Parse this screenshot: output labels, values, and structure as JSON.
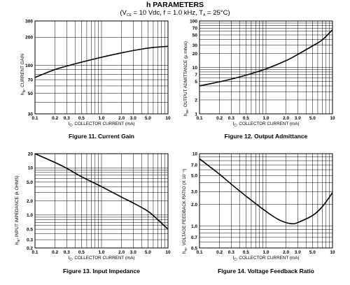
{
  "header": {
    "title": "h PARAMETERS",
    "cond_prefix": "(V",
    "cond_vce_sub": "CE",
    "cond_mid": " = 10 Vdc, f = 1.0 kHz, T",
    "cond_ta_sub": "A",
    "cond_suffix": " = 25°C)"
  },
  "chart_data": [
    {
      "type": "line",
      "caption": "Figure 11. Current Gain",
      "xlabel_symbol": "I",
      "xlabel_sub": "C",
      "xlabel_text": ", COLLECTOR CURRENT (mA)",
      "ylabel_symbol": "h",
      "ylabel_sub": "fe",
      "ylabel_text": ", CURRENT GAIN",
      "x_scale": "log",
      "y_scale": "log",
      "xlim": [
        0.1,
        10
      ],
      "ylim": [
        30,
        300
      ],
      "x_ticks": [
        "0.1",
        "0.2",
        "0.3",
        "0.5",
        "1.0",
        "2.0",
        "3.0",
        "5.0",
        "10"
      ],
      "y_ticks": [
        "30",
        "50",
        "70",
        "100",
        "200",
        "300"
      ],
      "series": [
        {
          "x": [
            0.1,
            0.2,
            0.3,
            0.5,
            1.0,
            2.0,
            3.0,
            5.0,
            7.0,
            10
          ],
          "y": [
            74,
            90,
            98,
            108,
            122,
            136,
            144,
            153,
            157,
            160
          ]
        }
      ]
    },
    {
      "type": "line",
      "caption": "Figure 12. Output Admittance",
      "xlabel_symbol": "I",
      "xlabel_sub": "C",
      "xlabel_text": ", COLLECTOR CURRENT (mA)",
      "ylabel_symbol": "h",
      "ylabel_sub": "oe",
      "ylabel_text": ", OUTPUT ADMITTANCE (μ mhos)",
      "x_scale": "log",
      "y_scale": "log",
      "xlim": [
        0.1,
        10
      ],
      "ylim": [
        1,
        100
      ],
      "x_ticks": [
        "0.1",
        "0.2",
        "0.3",
        "0.5",
        "1.0",
        "2.0",
        "3.0",
        "5.0",
        "10"
      ],
      "y_ticks": [
        "1",
        "2",
        "5",
        "7",
        "10",
        "20",
        "30",
        "50",
        "70",
        "100"
      ],
      "series": [
        {
          "x": [
            0.1,
            0.2,
            0.3,
            0.5,
            1.0,
            2.0,
            3.0,
            5.0,
            7.0,
            10
          ],
          "y": [
            4.0,
            4.9,
            5.6,
            6.8,
            9.3,
            14,
            19,
            29,
            39,
            65
          ]
        }
      ]
    },
    {
      "type": "line",
      "caption": "Figure 13. Input Impedance",
      "xlabel_symbol": "I",
      "xlabel_sub": "C",
      "xlabel_text": ", COLLECTOR CURRENT (mA)",
      "ylabel_symbol": "h",
      "ylabel_sub": "ie",
      "ylabel_text": ", INPUT IMPEDANCE (k OHMS)",
      "x_scale": "log",
      "y_scale": "log",
      "xlim": [
        0.1,
        10
      ],
      "ylim": [
        0.2,
        20
      ],
      "x_ticks": [
        "0.1",
        "0.2",
        "0.3",
        "0.5",
        "1.0",
        "2.0",
        "3.0",
        "5.0",
        "10"
      ],
      "y_ticks": [
        "0.2",
        "0.3",
        "0.5",
        "1.0",
        "2.0",
        "5.0",
        "10",
        "20"
      ],
      "series": [
        {
          "x": [
            0.1,
            0.2,
            0.3,
            0.5,
            1.0,
            2.0,
            3.0,
            5.0,
            7.0,
            10
          ],
          "y": [
            20,
            13,
            9.8,
            6.5,
            4.0,
            2.4,
            1.8,
            1.2,
            0.8,
            0.5
          ]
        }
      ]
    },
    {
      "type": "line",
      "caption": "Figure 14. Voltage Feedback Ratio",
      "xlabel_symbol": "I",
      "xlabel_sub": "C",
      "xlabel_text": ", COLLECTOR CURRENT (mA)",
      "ylabel_symbol": "h",
      "ylabel_sub": "re",
      "ylabel_text": ", VOLTAGE FEEDBACK RATIO (X 10⁻⁴)",
      "x_scale": "log",
      "y_scale": "log",
      "xlim": [
        0.1,
        10
      ],
      "ylim": [
        0.5,
        10
      ],
      "x_ticks": [
        "0.1",
        "0.2",
        "0.3",
        "0.5",
        "1.0",
        "2.0",
        "3.0",
        "5.0",
        "10"
      ],
      "y_ticks": [
        "0.5",
        "0.7",
        "1.0",
        "2.0",
        "3.0",
        "5.0",
        "7.0",
        "10"
      ],
      "series": [
        {
          "x": [
            0.1,
            0.2,
            0.3,
            0.5,
            1.0,
            1.5,
            2.0,
            2.5,
            3.0,
            5.0,
            7.0,
            10
          ],
          "y": [
            8.5,
            5.2,
            3.8,
            2.6,
            1.6,
            1.25,
            1.12,
            1.08,
            1.12,
            1.4,
            1.85,
            2.9
          ]
        }
      ]
    }
  ]
}
